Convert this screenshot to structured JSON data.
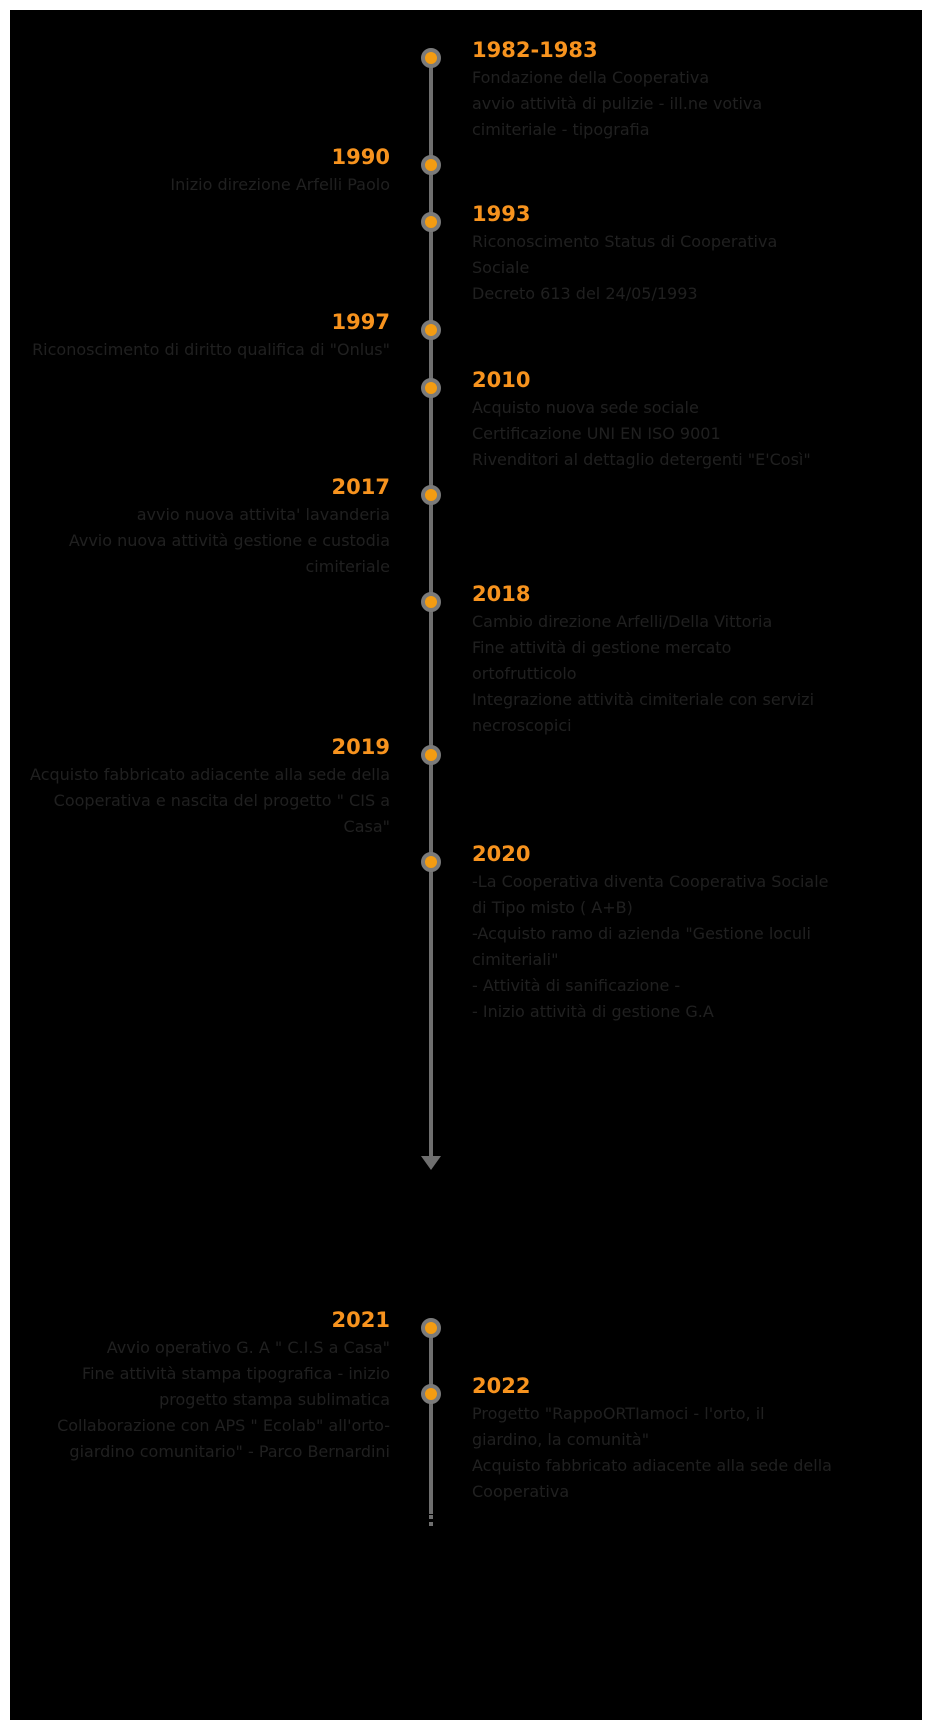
{
  "timeline": {
    "events": [
      {
        "year": "1982-1983",
        "side": "right",
        "lines": [
          "Fondazione della Cooperativa",
          "avvio attività di pulizie - ill.ne votiva",
          "cimiteriale - tipografia"
        ]
      },
      {
        "year": "1990",
        "side": "left",
        "lines": [
          "Inizio direzione Arfelli Paolo"
        ]
      },
      {
        "year": "1993",
        "side": "right",
        "lines": [
          "Riconoscimento Status di Cooperativa",
          "Sociale",
          "Decreto 613 del 24/05/1993"
        ]
      },
      {
        "year": "1997",
        "side": "left",
        "lines": [
          "Riconoscimento di diritto qualifica di \"Onlus\""
        ]
      },
      {
        "year": "2010",
        "side": "right",
        "lines": [
          "Acquisto nuova sede sociale",
          "Certificazione UNI EN ISO 9001",
          "Rivenditori al dettaglio detergenti \"E'Così\""
        ]
      },
      {
        "year": "2017",
        "side": "left",
        "lines": [
          "avvio  nuova attivita' lavanderia",
          "Avvio nuova attività gestione e custodia",
          "cimiteriale"
        ]
      },
      {
        "year": "2018",
        "side": "right",
        "lines": [
          "Cambio direzione Arfelli/Della Vittoria",
          "Fine attività di gestione mercato",
          "ortofrutticolo",
          "Integrazione attività cimiteriale con servizi",
          "necroscopici"
        ]
      },
      {
        "year": "2019",
        "side": "left",
        "lines": [
          "Acquisto fabbricato adiacente alla sede della",
          "Cooperativa e nascita del progetto \" CIS a",
          "Casa\""
        ]
      },
      {
        "year": "2020",
        "side": "right",
        "lines": [
          "-La Cooperativa diventa Cooperativa Sociale",
          "di Tipo misto ( A+B)",
          "-Acquisto ramo di azienda \"Gestione loculi",
          "cimiteriali\"",
          " - Attività di sanificazione -",
          "- Inizio attività  di gestione G.A"
        ]
      },
      {
        "year": "2021",
        "side": "left",
        "lines": [
          "Avvio operativo G. A \" C.I.S a Casa\"",
          "Fine attività stampa tipografica - inizio",
          "progetto stampa sublimatica",
          "Collaborazione con APS \" Ecolab\" all'orto-",
          "giardino comunitario\" - Parco Bernardini"
        ]
      },
      {
        "year": "2022",
        "side": "right",
        "lines": [
          "Progetto \"RappoORTIamoci - l'orto, il",
          "giardino, la comunità\"",
          "Acquisto fabbricato adiacente alla sede della",
          "Cooperativa"
        ]
      }
    ]
  },
  "colors": {
    "background": "#000000",
    "year": "#f7931e",
    "dot": "#f39c12",
    "line": "#6f6f6f",
    "text": "#202020"
  }
}
